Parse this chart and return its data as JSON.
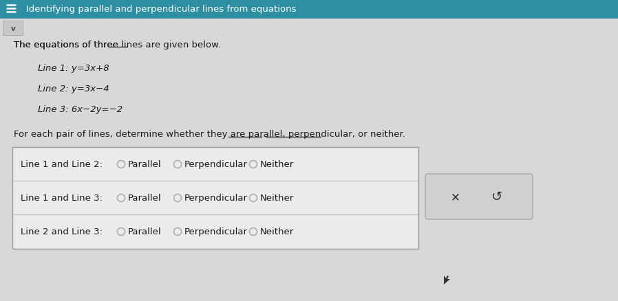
{
  "title": "Identifying parallel and perpendicular lines from equations",
  "title_color": "#ffffff",
  "title_bg_color": "#2e8fa3",
  "body_bg_color": "#d8d8d8",
  "chevron_bg_color": "#c8c8c8",
  "intro_text_pre": "The equations of three ",
  "intro_text_underline": "lines",
  "intro_text_post": " are given below.",
  "eq1_label": "Line 1: ",
  "eq1_math": "y=3x+8",
  "eq2_label": "Line 2: ",
  "eq2_math": "y=3x−4",
  "eq3_label": "Line 3: ",
  "eq3_math": "6x−2y=−2",
  "q_pre": "For each pair of lines, determine whether they are ",
  "q_par": "parallel,",
  "q_mid": " ",
  "q_perp": "perpendicular,",
  "q_post": " or neither.",
  "pair1_label": "Line 1 and Line 2:",
  "pair2_label": "Line 1 and Line 3:",
  "pair3_label": "Line 2 and Line 3:",
  "options": [
    "Parallel",
    "Perpendicular",
    "Neither"
  ],
  "table_bg": "#ebebeb",
  "table_border": "#999999",
  "side_box_bg": "#d0d0d0",
  "side_box_border": "#aaaaaa",
  "radio_color": "#aaaaaa",
  "text_color": "#1a1a1a",
  "title_bar_height": 28,
  "fig_w": 898,
  "fig_h": 439
}
